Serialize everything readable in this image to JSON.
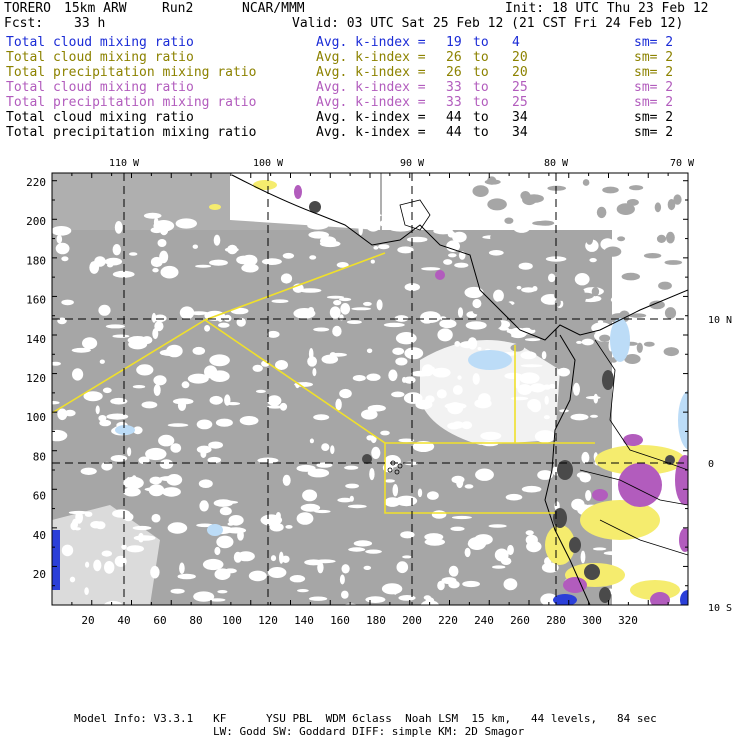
{
  "header": {
    "model": "TORERO",
    "resolution": "15km ARW",
    "run": "Run2",
    "org": "NCAR/MMM",
    "init": "Init: 18 UTC Thu 23 Feb 12",
    "fcst_label": "Fcst:",
    "fcst_value": "33 h",
    "valid": "Valid: 03 UTC Sat 25 Feb 12 (21 CST Fri 24 Feb 12)"
  },
  "legend": [
    {
      "label": "Total cloud mixing ratio",
      "avg": "Avg. k-index =",
      "from": "19",
      "to_word": "to",
      "to": "4",
      "sm": "sm= 2",
      "color": "#1b2bd6"
    },
    {
      "label": "Total cloud mixing ratio",
      "avg": "Avg. k-index =",
      "from": "26",
      "to_word": "to",
      "to": "20",
      "sm": "sm= 2",
      "color": "#8c8200"
    },
    {
      "label": "Total precipitation mixing ratio",
      "avg": "Avg. k-index =",
      "from": "26",
      "to_word": "to",
      "to": "20",
      "sm": "sm= 2",
      "color": "#8c8200"
    },
    {
      "label": "Total cloud mixing ratio",
      "avg": "Avg. k-index =",
      "from": "33",
      "to_word": "to",
      "to": "25",
      "sm": "sm= 2",
      "color": "#b25cbd"
    },
    {
      "label": "Total precipitation mixing ratio",
      "avg": "Avg. k-index =",
      "from": "33",
      "to_word": "to",
      "to": "25",
      "sm": "sm= 2",
      "color": "#b25cbd"
    },
    {
      "label": "Total cloud mixing ratio",
      "avg": "Avg. k-index =",
      "from": "44",
      "to_word": "to",
      "to": "34",
      "sm": "sm= 2",
      "color": "#000000"
    },
    {
      "label": "Total precipitation mixing ratio",
      "avg": "Avg. k-index =",
      "from": "44",
      "to_word": "to",
      "to": "34",
      "sm": "sm= 2",
      "color": "#000000"
    }
  ],
  "axes": {
    "lon_labels": [
      "110 W",
      "100 W",
      "90 W",
      "80 W",
      "70 W"
    ],
    "lat_labels": [
      "10 N",
      "0",
      "10 S"
    ],
    "x_ticks": [
      "20",
      "40",
      "60",
      "80",
      "100",
      "120",
      "140",
      "160",
      "180",
      "200",
      "220",
      "240",
      "260",
      "280",
      "300",
      "320"
    ],
    "y_ticks": [
      "220",
      "200",
      "180",
      "160",
      "140",
      "120",
      "100",
      "80",
      "60",
      "40",
      "20"
    ]
  },
  "footer": {
    "line1": "Model Info: V3.3.1   KF      YSU PBL  WDM 6class  Noah LSM  15 km,   44 levels,   84 sec",
    "line2": "LW: Godd SW: Goddard DIFF: simple KM: 2D Smagor"
  },
  "colors": {
    "cloud_gray": "#a6a6a6",
    "dark_cloud": "#4a4a4a",
    "yellow": "#f5ec6e",
    "purple": "#b25cbd",
    "light_blue": "#bcdcf7",
    "blue": "#2b3fd8",
    "box": "#f0e02a"
  }
}
